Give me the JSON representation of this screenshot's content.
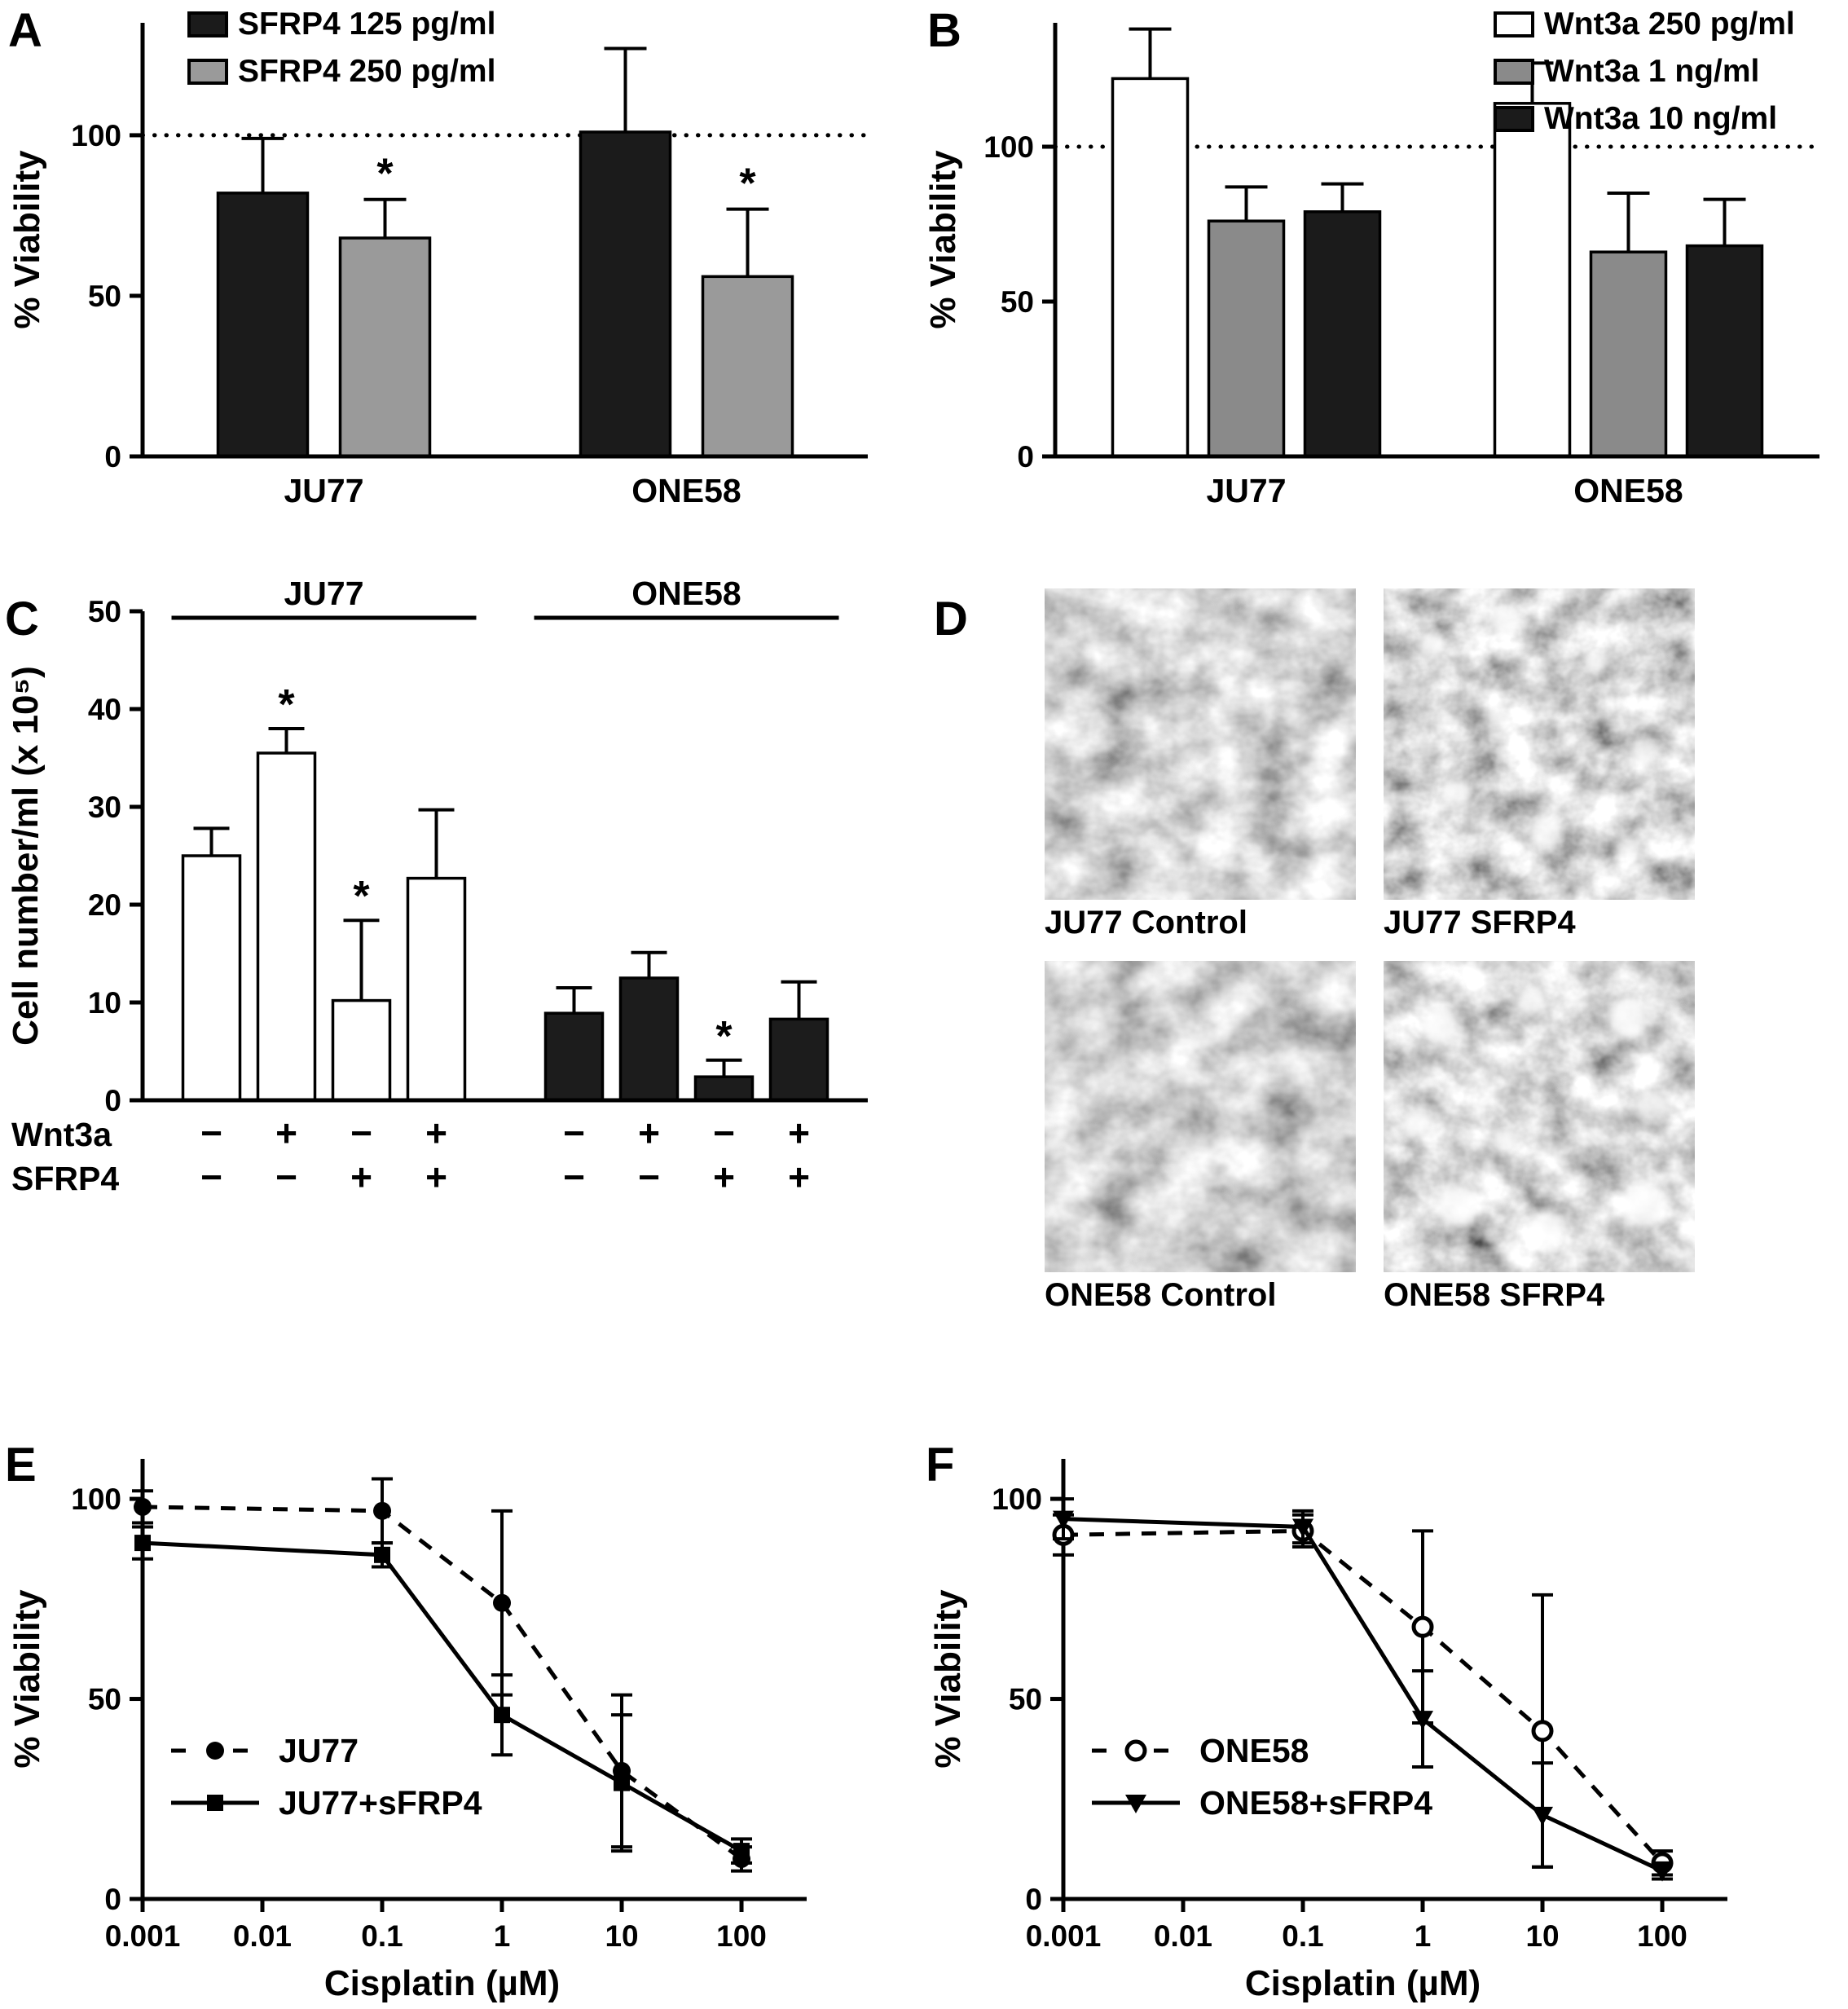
{
  "panels": {
    "A": {
      "label": "A"
    },
    "B": {
      "label": "B"
    },
    "C": {
      "label": "C"
    },
    "D": {
      "label": "D"
    },
    "E": {
      "label": "E"
    },
    "F": {
      "label": "F"
    }
  },
  "panel_d": {
    "images": [
      {
        "caption": "JU77 Control"
      },
      {
        "caption": "JU77 SFRP4"
      },
      {
        "caption": "ONE58 Control"
      },
      {
        "caption": "ONE58 SFRP4"
      }
    ]
  },
  "chart_data": [
    {
      "id": "A",
      "type": "bar",
      "title": "",
      "ylabel": "% Viability",
      "ylim": [
        0,
        135
      ],
      "yticks": [
        0,
        50,
        100
      ],
      "reference_line": 100,
      "grid": false,
      "legend_position": "top-left",
      "categories": [
        "JU77",
        "ONE58"
      ],
      "series": [
        {
          "name": "SFRP4 125 pg/ml",
          "color": "#1b1b1b",
          "values": [
            82,
            101
          ],
          "errors": [
            17,
            26
          ],
          "sig": [
            false,
            false
          ]
        },
        {
          "name": "SFRP4 250 pg/ml",
          "color": "#9a9a9a",
          "values": [
            68,
            56
          ],
          "errors": [
            12,
            21
          ],
          "sig": [
            true,
            true
          ]
        }
      ]
    },
    {
      "id": "B",
      "type": "bar",
      "title": "",
      "ylabel": "% Viability",
      "ylim": [
        0,
        140
      ],
      "yticks": [
        0,
        50,
        100
      ],
      "reference_line": 100,
      "grid": false,
      "legend_position": "top-right",
      "categories": [
        "JU77",
        "ONE58"
      ],
      "series": [
        {
          "name": "Wnt3a 250 pg/ml",
          "color": "#ffffff",
          "values": [
            122,
            114
          ],
          "errors": [
            16,
            13
          ]
        },
        {
          "name": "Wnt3a 1 ng/ml",
          "color": "#8a8a8a",
          "values": [
            76,
            66
          ],
          "errors": [
            11,
            19
          ]
        },
        {
          "name": "Wnt3a 10 ng/ml",
          "color": "#1b1b1b",
          "values": [
            79,
            68
          ],
          "errors": [
            9,
            15
          ]
        }
      ]
    },
    {
      "id": "C",
      "type": "bar",
      "title": "",
      "ylabel": "Cell number/ml (x 10⁵)",
      "ylim": [
        0,
        50
      ],
      "yticks": [
        0,
        10,
        20,
        30,
        40,
        50
      ],
      "grid": false,
      "groups": [
        {
          "name": "JU77",
          "fill": "#ffffff",
          "values": [
            25,
            35.5,
            10.2,
            22.7
          ],
          "errors": [
            2.8,
            2.5,
            8.2,
            7
          ],
          "sig": [
            false,
            true,
            true,
            false
          ]
        },
        {
          "name": "ONE58",
          "fill": "#1c1c1c",
          "values": [
            8.9,
            12.5,
            2.4,
            8.3
          ],
          "errors": [
            2.6,
            2.6,
            1.7,
            3.8
          ],
          "sig": [
            false,
            false,
            true,
            false
          ]
        }
      ],
      "condition_rows": [
        {
          "label": "Wnt3a",
          "values": [
            "−",
            "+",
            "−",
            "+",
            "−",
            "+",
            "−",
            "+"
          ]
        },
        {
          "label": "SFRP4",
          "values": [
            "−",
            "−",
            "+",
            "+",
            "−",
            "−",
            "+",
            "+"
          ]
        }
      ]
    },
    {
      "id": "E",
      "type": "line",
      "title": "",
      "xlabel": "Cisplatin (µM)",
      "ylabel": "% Viability",
      "xscale": "log",
      "xlim": [
        0.001,
        350
      ],
      "ylim": [
        0,
        110
      ],
      "yticks": [
        0,
        50,
        100
      ],
      "xticks": [
        0.001,
        0.01,
        0.1,
        1,
        10,
        100
      ],
      "xtick_labels": [
        "0.001",
        "0.01",
        "0.1",
        "1",
        "10",
        "100"
      ],
      "x": [
        0.001,
        0.1,
        1,
        10,
        100
      ],
      "legend_position": "inside-lower-left",
      "series": [
        {
          "name": "JU77",
          "dashed": true,
          "marker": "circle-filled",
          "values": [
            98,
            97,
            74,
            32,
            10
          ],
          "errors": [
            4,
            8,
            23,
            19,
            3
          ]
        },
        {
          "name": "JU77+sFRP4",
          "dashed": false,
          "marker": "square-filled",
          "values": [
            89,
            86,
            46,
            29,
            12
          ],
          "errors": [
            4,
            3,
            10,
            17,
            3
          ]
        }
      ]
    },
    {
      "id": "F",
      "type": "line",
      "title": "",
      "xlabel": "Cisplatin (µM)",
      "ylabel": "% Viability",
      "xscale": "log",
      "xlim": [
        0.001,
        350
      ],
      "ylim": [
        0,
        110
      ],
      "yticks": [
        0,
        50,
        100
      ],
      "xticks": [
        0.001,
        0.01,
        0.1,
        1,
        10,
        100
      ],
      "xtick_labels": [
        "0.001",
        "0.01",
        "0.1",
        "1",
        "10",
        "100"
      ],
      "x": [
        0.001,
        0.1,
        1,
        10,
        100
      ],
      "legend_position": "inside-lower-left",
      "series": [
        {
          "name": "ONE58",
          "dashed": true,
          "marker": "circle-open",
          "values": [
            91,
            92,
            68,
            42,
            9
          ],
          "errors": [
            5,
            4,
            24,
            34,
            3
          ]
        },
        {
          "name": "ONE58+sFRP4",
          "dashed": false,
          "marker": "triangle-down-filled",
          "values": [
            95,
            93,
            45,
            21,
            7
          ],
          "errors": [
            5,
            4,
            12,
            13,
            2
          ]
        }
      ]
    }
  ]
}
